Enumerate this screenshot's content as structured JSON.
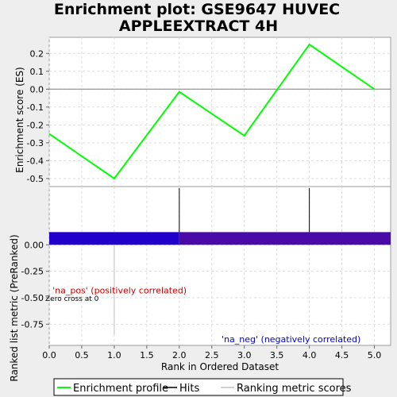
{
  "title": {
    "line1": "Enrichment plot: GSE9647 HUVEC",
    "line2": "APPLEEXTRACT 4H"
  },
  "chart_data": [
    {
      "type": "line",
      "panel": "enrichment",
      "ylabel": "Enrichment score (ES)",
      "x": [
        0,
        1,
        2,
        3,
        4,
        5
      ],
      "series": [
        {
          "name": "Enrichment profile",
          "color": "#00ff00",
          "values": [
            -0.25,
            -0.5,
            -0.015,
            -0.26,
            0.25,
            0.0
          ]
        }
      ],
      "xlim": [
        0,
        5.25
      ],
      "ylim": [
        -0.545,
        0.29
      ],
      "yticks": [
        0.2,
        0.1,
        0.0,
        -0.1,
        -0.2,
        -0.3,
        -0.4,
        -0.5
      ],
      "ytick_labels": [
        "0.2",
        "0.1",
        "0.0",
        "-0.1",
        "-0.2",
        "-0.3",
        "-0.4",
        "-0.5"
      ],
      "grid": true
    },
    {
      "type": "bar",
      "panel": "hits",
      "series": [
        {
          "name": "Hits",
          "color": "#000000",
          "x": [
            2,
            4
          ]
        }
      ]
    },
    {
      "type": "area",
      "panel": "ranked-list",
      "xlabel": "Rank in Ordered Dataset",
      "ylabel": "Ranked list metric (PreRanked)",
      "xlim": [
        0,
        5.25
      ],
      "ylim": [
        -0.95,
        0.55
      ],
      "xticks": [
        0,
        0.5,
        1,
        1.5,
        2,
        2.5,
        3,
        3.5,
        4,
        4.5,
        5
      ],
      "xtick_labels": [
        "0.0",
        "0.5",
        "1.0",
        "1.5",
        "2.0",
        "2.5",
        "3.0",
        "3.5",
        "4.0",
        "4.5",
        "5.0"
      ],
      "yticks": [
        0.0,
        -0.25,
        -0.5,
        -0.75
      ],
      "ytick_labels": [
        "0.00",
        "-0.25",
        "-0.50",
        "-0.75"
      ],
      "series": [
        {
          "name": "Ranking metric scores",
          "color": "#c0c0c0",
          "values": [
            0,
            -0.85,
            0,
            0,
            0,
            0
          ]
        }
      ],
      "band": {
        "segments": [
          {
            "from": 0,
            "to": 2,
            "color": "#2200cc"
          },
          {
            "from": 2,
            "to": 5.25,
            "color": "#4a0aa8"
          }
        ],
        "y_from": 0.0,
        "y_to": 0.12
      },
      "annotations": [
        {
          "text": "'na_pos' (positively correlated)",
          "x": 0.05,
          "y": -0.43,
          "color": "#cc0000"
        },
        {
          "text": "'na_neg' (negatively correlated)",
          "x": 2.65,
          "y": -0.89,
          "color": "#0000cc"
        },
        {
          "text": "Zero cross at 0",
          "x": 0,
          "y": -0.5,
          "color": "#000000"
        }
      ],
      "grid": true
    }
  ],
  "legend": {
    "items": [
      {
        "label": "Enrichment profile",
        "color": "#00ff00"
      },
      {
        "label": "Hits",
        "color": "#000000"
      },
      {
        "label": "Ranking metric scores",
        "color": "#c0c0c0"
      }
    ]
  }
}
